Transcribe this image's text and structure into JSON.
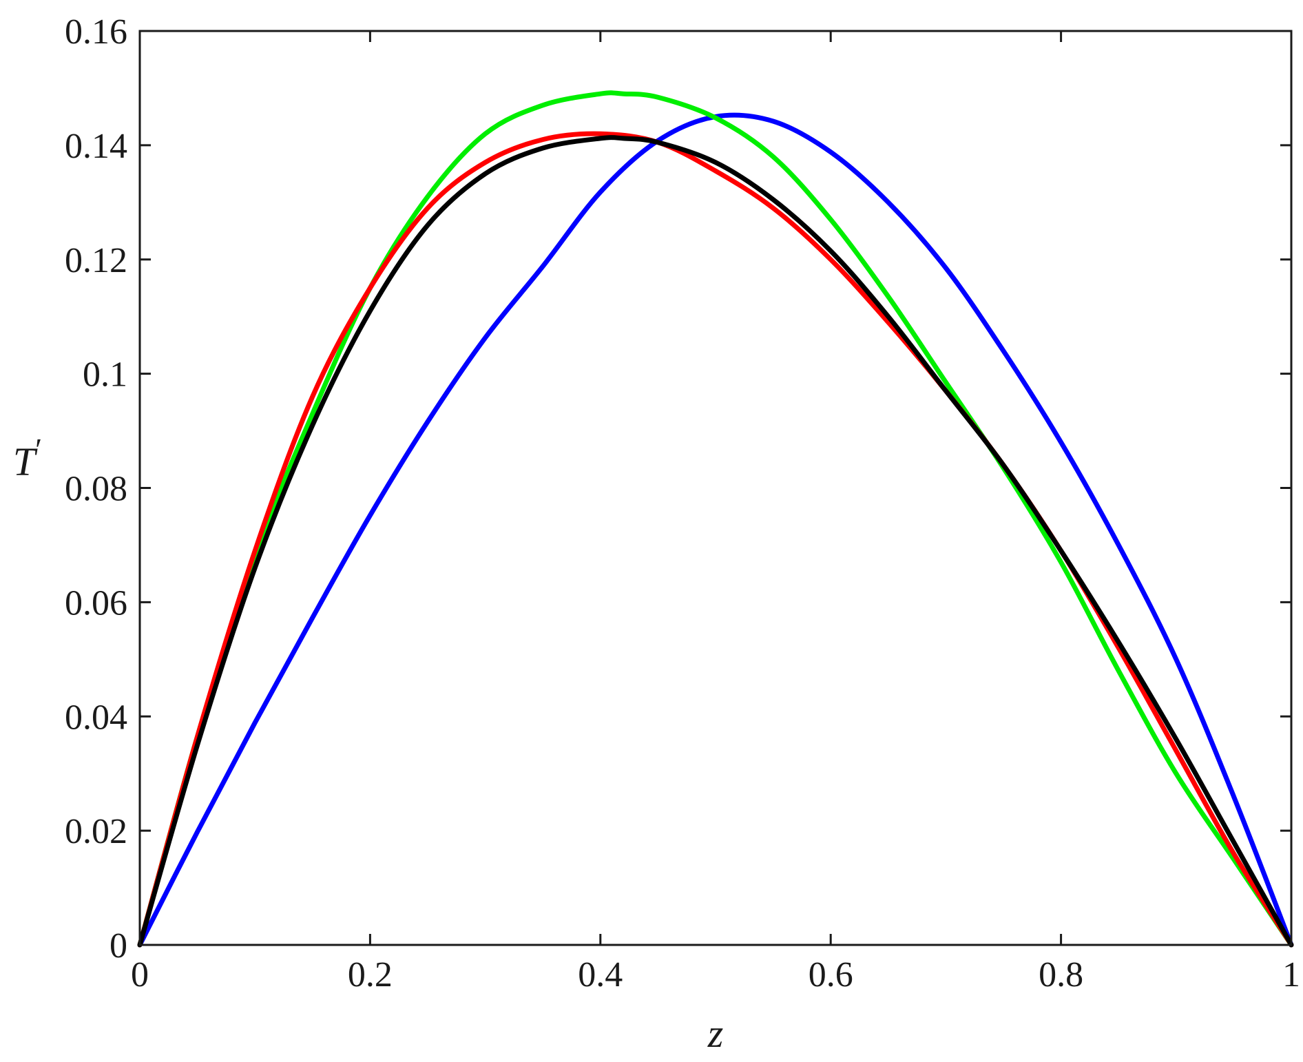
{
  "chart_data": {
    "type": "line",
    "title": "",
    "xlabel": "z",
    "ylabel": "T",
    "ylabel_superscript": "′",
    "xlim": [
      0,
      1
    ],
    "ylim": [
      0,
      0.16
    ],
    "xticks": [
      0,
      0.2,
      0.4,
      0.6,
      0.8,
      1
    ],
    "xtick_labels": [
      "0",
      "0.2",
      "0.4",
      "0.6",
      "0.8",
      "1"
    ],
    "yticks": [
      0,
      0.02,
      0.04,
      0.06,
      0.08,
      0.1,
      0.12,
      0.14,
      0.16
    ],
    "ytick_labels": [
      "0",
      "0.02",
      "0.04",
      "0.06",
      "0.08",
      "0.1",
      "0.12",
      "0.14",
      "0.16"
    ],
    "grid": false,
    "legend": "none",
    "series": [
      {
        "color": "#0000ff",
        "x": [
          0,
          0.05,
          0.1,
          0.15,
          0.2,
          0.25,
          0.3,
          0.35,
          0.4,
          0.45,
          0.5,
          0.55,
          0.6,
          0.65,
          0.7,
          0.75,
          0.8,
          0.85,
          0.9,
          0.95,
          1
        ],
        "y": [
          0,
          0.0198,
          0.0389,
          0.0573,
          0.0752,
          0.0916,
          0.1063,
          0.1188,
          0.1318,
          0.1408,
          0.145,
          0.1442,
          0.1388,
          0.13,
          0.1185,
          0.104,
          0.088,
          0.07,
          0.05,
          0.026,
          0
        ]
      },
      {
        "color": "#00ee00",
        "x": [
          0,
          0.05,
          0.1,
          0.15,
          0.2,
          0.25,
          0.3,
          0.35,
          0.4,
          0.42,
          0.45,
          0.5,
          0.55,
          0.6,
          0.65,
          0.7,
          0.75,
          0.8,
          0.85,
          0.9,
          0.95,
          1
        ],
        "y": [
          0,
          0.0365,
          0.068,
          0.093,
          0.115,
          0.131,
          0.142,
          0.147,
          0.149,
          0.149,
          0.1484,
          0.1448,
          0.138,
          0.127,
          0.1135,
          0.0985,
          0.0835,
          0.067,
          0.048,
          0.03,
          0.015,
          0
        ]
      },
      {
        "color": "#ff0000",
        "x": [
          0,
          0.05,
          0.1,
          0.15,
          0.2,
          0.25,
          0.3,
          0.35,
          0.4,
          0.45,
          0.5,
          0.55,
          0.6,
          0.65,
          0.7,
          0.75,
          0.8,
          0.85,
          0.9,
          0.95,
          1
        ],
        "y": [
          0,
          0.0365,
          0.069,
          0.096,
          0.115,
          0.129,
          0.137,
          0.141,
          0.142,
          0.1405,
          0.1355,
          0.129,
          0.12,
          0.109,
          0.097,
          0.084,
          0.069,
          0.052,
          0.034,
          0.016,
          0
        ]
      },
      {
        "color": "#000000",
        "x": [
          0,
          0.05,
          0.1,
          0.15,
          0.2,
          0.25,
          0.3,
          0.35,
          0.4,
          0.42,
          0.45,
          0.5,
          0.55,
          0.6,
          0.65,
          0.7,
          0.75,
          0.8,
          0.85,
          0.9,
          0.95,
          1
        ],
        "y": [
          0,
          0.035,
          0.066,
          0.091,
          0.111,
          0.126,
          0.135,
          0.1395,
          0.1412,
          0.1412,
          0.1405,
          0.137,
          0.1305,
          0.1215,
          0.11,
          0.097,
          0.084,
          0.069,
          0.053,
          0.036,
          0.018,
          0
        ]
      }
    ]
  }
}
